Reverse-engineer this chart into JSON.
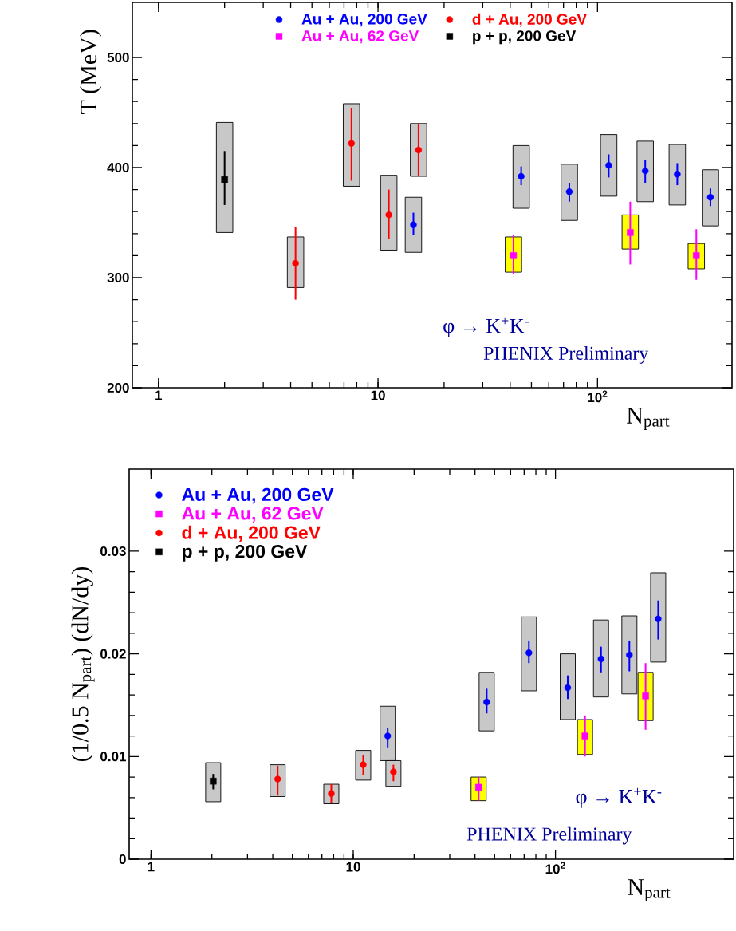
{
  "chart_data": [
    {
      "type": "scatter",
      "ylabel": "T (MeV)",
      "xlabel": "N$_{part}$",
      "log": "x",
      "legend": "top",
      "xlim": [
        0.76,
        410
      ],
      "ylim": [
        200,
        550
      ],
      "xticks": [
        1,
        10,
        {
          "value": 100,
          "label": "10$^{2}$"
        }
      ],
      "yticks": [
        200,
        300,
        400,
        500
      ],
      "annotations": [
        "φ → K$^{+}$K$^{-}$",
        "PHENIX Preliminary"
      ],
      "series": [
        {
          "type": "bar",
          "color": "#c8c8c8",
          "x": [
            2,
            4.21,
            7.57,
            11.2,
            14.5,
            15.3,
            44.9,
            74.4,
            112.5,
            165,
            231,
            327
          ],
          "base": [
            341,
            291,
            383,
            325,
            323,
            392,
            363,
            352,
            374,
            369,
            366,
            347
          ],
          "values": [
            100,
            46,
            75,
            68,
            50,
            48,
            57,
            51,
            56,
            55,
            55,
            51
          ]
        },
        {
          "type": "bar",
          "color": "#ffff00",
          "x": [
            41.4,
            141,
            282
          ],
          "base": [
            305,
            326,
            308
          ],
          "values": [
            32,
            31,
            23
          ]
        },
        {
          "name": "Au + Au, 200 GeV",
          "color": "#0000ff",
          "marker": "circle",
          "x": [
            14.5,
            44.9,
            74.4,
            112.5,
            165,
            231,
            327
          ],
          "values": [
            348,
            392,
            378,
            402,
            397,
            394,
            373
          ],
          "errors": [
            [
              339,
              359
            ],
            [
              384,
              401
            ],
            [
              369,
              386
            ],
            [
              391,
              412
            ],
            [
              386,
              407
            ],
            [
              384,
              404
            ],
            [
              365,
              381
            ]
          ]
        },
        {
          "name": "d + Au, 200 GeV",
          "color": "#ff0000",
          "marker": "circle",
          "x": [
            4.21,
            7.57,
            11.2,
            15.3
          ],
          "values": [
            313,
            422,
            357,
            416
          ],
          "errors": [
            [
              280,
              346
            ],
            [
              388,
              454
            ],
            [
              335,
              380
            ],
            [
              392,
              440
            ]
          ]
        },
        {
          "name": "Au + Au, 62 GeV",
          "color": "#ff00ff",
          "marker": "square",
          "x": [
            41.4,
            141,
            282
          ],
          "values": [
            320,
            341,
            320
          ],
          "errors": [
            [
              303,
              339
            ],
            [
              312,
              369
            ],
            [
              298,
              344
            ]
          ]
        },
        {
          "name": "p + p, 200 GeV",
          "color": "#000000",
          "marker": "square",
          "x": [
            2
          ],
          "values": [
            389
          ],
          "errors": [
            [
              366,
              415
            ]
          ]
        }
      ]
    },
    {
      "type": "scatter",
      "ylabel": "(1/0.5 N$_{part}$) (dN/dy)",
      "xlabel": "N$_{part}$",
      "log": "x",
      "legend": "top left",
      "xlim": [
        0.78,
        760
      ],
      "ylim": [
        0,
        0.038
      ],
      "xticks": [
        1,
        10,
        {
          "value": 100,
          "label": "10$^{2}$"
        }
      ],
      "yticks": [
        0,
        0.01,
        0.02,
        0.03
      ],
      "annotations": [
        "φ → K$^{+}$K$^{-}$",
        "PHENIX Preliminary"
      ],
      "series": [
        {
          "type": "bar",
          "color": "#c8c8c8",
          "x": [
            2.03,
            4.23,
            7.79,
            11.2,
            14.8,
            15.8,
            45.7,
            73.9,
            115,
            168,
            232,
            322
          ],
          "base": [
            0.0056,
            0.0061,
            0.0054,
            0.0077,
            0.0096,
            0.0071,
            0.0125,
            0.0164,
            0.0136,
            0.0158,
            0.0161,
            0.0192
          ],
          "values": [
            0.0038,
            0.0031,
            0.0019,
            0.0029,
            0.0053,
            0.0025,
            0.0057,
            0.0072,
            0.0064,
            0.0075,
            0.0076,
            0.0087
          ]
        },
        {
          "type": "bar",
          "color": "#ffff00",
          "x": [
            41.7,
            140,
            279
          ],
          "base": [
            0.0057,
            0.0102,
            0.0135
          ],
          "values": [
            0.0023,
            0.0034,
            0.0047
          ]
        },
        {
          "name": "Au + Au, 200 GeV",
          "color": "#0000ff",
          "marker": "circle",
          "x": [
            14.8,
            45.7,
            73.9,
            115,
            168,
            232,
            322
          ],
          "values": [
            0.012,
            0.0153,
            0.0201,
            0.0167,
            0.0195,
            0.0199,
            0.0234
          ],
          "errors": [
            [
              0.0109,
              0.0128
            ],
            [
              0.0142,
              0.0166
            ],
            [
              0.0191,
              0.0213
            ],
            [
              0.0156,
              0.0179
            ],
            [
              0.0182,
              0.0207
            ],
            [
              0.0183,
              0.0213
            ],
            [
              0.0214,
              0.0252
            ]
          ]
        },
        {
          "name": "Au + Au, 62 GeV",
          "color": "#ff00ff",
          "marker": "square",
          "x": [
            41.7,
            140,
            279
          ],
          "values": [
            0.007,
            0.012,
            0.0159
          ],
          "errors": [
            [
              0.0057,
              0.008
            ],
            [
              0.01,
              0.014
            ],
            [
              0.0126,
              0.0191
            ]
          ]
        },
        {
          "name": "d + Au, 200 GeV",
          "color": "#ff0000",
          "marker": "circle",
          "x": [
            4.23,
            7.79,
            11.2,
            15.8
          ],
          "values": [
            0.0078,
            0.0064,
            0.0092,
            0.0085
          ],
          "errors": [
            [
              0.0062,
              0.0091
            ],
            [
              0.0055,
              0.0073
            ],
            [
              0.0082,
              0.0101
            ],
            [
              0.0076,
              0.0092
            ]
          ]
        },
        {
          "name": "p + p, 200 GeV",
          "color": "#000000",
          "marker": "square",
          "x": [
            2.03
          ],
          "values": [
            0.0076
          ],
          "errors": [
            [
              0.0068,
              0.0083
            ]
          ]
        }
      ]
    }
  ]
}
